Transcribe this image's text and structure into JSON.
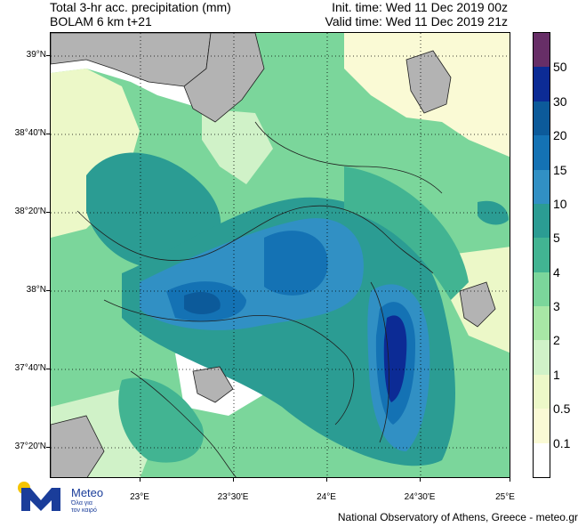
{
  "header": {
    "title_line1": "Total 3-hr acc. precipitation (mm)",
    "title_line2": "BOLAM 6 km t+21",
    "init_time": "Init. time: Wed 11 Dec 2019 00z",
    "valid_time": "Valid time: Wed 11 Dec 2019 21z"
  },
  "map": {
    "lat_labels": [
      "39°N",
      "38°40'N",
      "38°20'N",
      "38°N",
      "37°40'N",
      "37°20'N"
    ],
    "lon_labels": [
      "23°E",
      "23°30'E",
      "24°E",
      "24°30'E",
      "25°E"
    ],
    "colors": {
      "land": "#b3b3b3",
      "coast": "#1f1f1f"
    }
  },
  "colorbar": {
    "labels": [
      "50",
      "30",
      "20",
      "15",
      "10",
      "5",
      "4",
      "3",
      "2",
      "1",
      "0.5",
      "0.1"
    ],
    "colors": [
      "#672e67",
      "#0c2b95",
      "#0c5a9a",
      "#1472b4",
      "#3190c4",
      "#2b9c93",
      "#42b492",
      "#7bd69b",
      "#a8e7a6",
      "#d0f2c8",
      "#ecf8c8",
      "#fafad5",
      "#ffffff"
    ]
  },
  "logo": {
    "brand": "Meteo",
    "tagline_line1": "Όλα για",
    "tagline_line2": "τον καιρό"
  },
  "footer": "National Observatory of Athens, Greece - meteo.gr"
}
